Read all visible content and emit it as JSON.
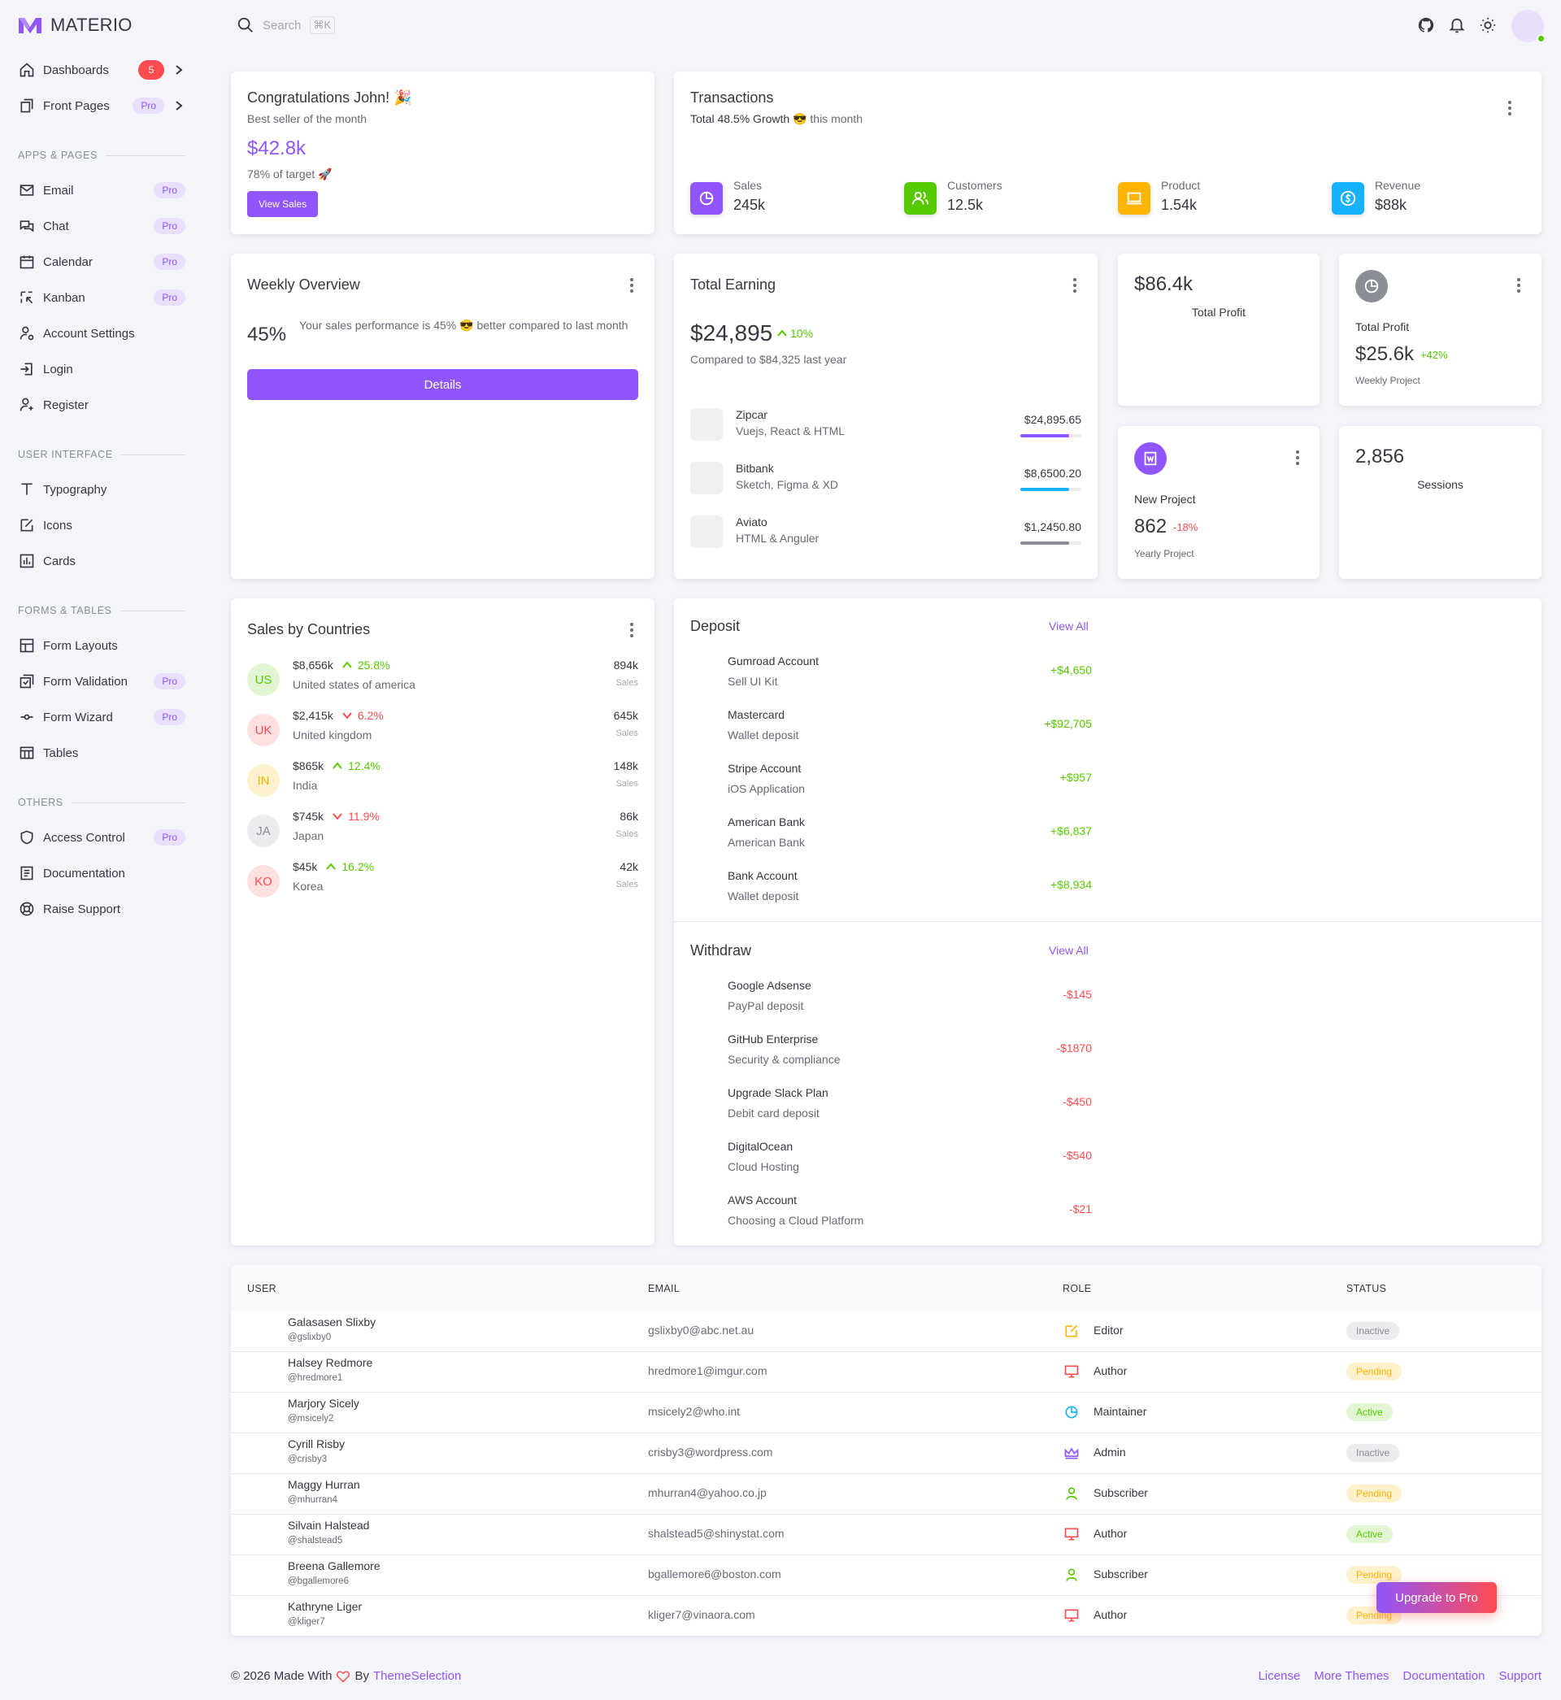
{
  "brand": {
    "name": "MATERIO"
  },
  "search": {
    "placeholder": "Search",
    "shortcut": "⌘K"
  },
  "sidebar": {
    "dashboards": {
      "label": "Dashboards",
      "badge": "5"
    },
    "front_pages": {
      "label": "Front Pages",
      "badge": "Pro"
    },
    "sections": [
      "APPS & PAGES",
      "USER INTERFACE",
      "FORMS & TABLES",
      "OTHERS"
    ],
    "apps": [
      {
        "label": "Email",
        "badge": "Pro"
      },
      {
        "label": "Chat",
        "badge": "Pro"
      },
      {
        "label": "Calendar",
        "badge": "Pro"
      },
      {
        "label": "Kanban",
        "badge": "Pro"
      },
      {
        "label": "Account Settings"
      },
      {
        "label": "Login"
      },
      {
        "label": "Register"
      }
    ],
    "ui": [
      {
        "label": "Typography"
      },
      {
        "label": "Icons"
      },
      {
        "label": "Cards"
      }
    ],
    "forms": [
      {
        "label": "Form Layouts"
      },
      {
        "label": "Form Validation",
        "badge": "Pro"
      },
      {
        "label": "Form Wizard",
        "badge": "Pro"
      },
      {
        "label": "Tables"
      }
    ],
    "others": [
      {
        "label": "Access Control",
        "badge": "Pro"
      },
      {
        "label": "Documentation"
      },
      {
        "label": "Raise Support"
      }
    ]
  },
  "congrats": {
    "title": "Congratulations John! 🎉",
    "subtitle": "Best seller of the month",
    "amount": "$42.8k",
    "target": "78% of target 🚀",
    "button": "View Sales"
  },
  "transactions": {
    "title": "Transactions",
    "subtitle_prefix": "Total 48.5% Growth",
    "subtitle_emoji": "😎",
    "subtitle_suffix": "this month",
    "items": [
      {
        "label": "Sales",
        "value": "245k",
        "color": "#9055fd"
      },
      {
        "label": "Customers",
        "value": "12.5k",
        "color": "#56ca00"
      },
      {
        "label": "Product",
        "value": "1.54k",
        "color": "#ffb400"
      },
      {
        "label": "Revenue",
        "value": "$88k",
        "color": "#16b1ff"
      }
    ]
  },
  "weekly": {
    "title": "Weekly Overview",
    "percent": "45%",
    "text": "Your sales performance is 45% 😎 better compared to last month",
    "button": "Details"
  },
  "earning": {
    "title": "Total Earning",
    "amount": "$24,895",
    "change": "10%",
    "compare": "Compared to $84,325 last year",
    "items": [
      {
        "name": "Zipcar",
        "tech": "Vuejs, React & HTML",
        "amount": "$24,895.65",
        "progress": 0.8,
        "color": "#9055fd"
      },
      {
        "name": "Bitbank",
        "tech": "Sketch, Figma & XD",
        "amount": "$8,6500.20",
        "progress": 0.8,
        "color": "#16b1ff"
      },
      {
        "name": "Aviato",
        "tech": "HTML & Anguler",
        "amount": "$1,2450.80",
        "progress": 0.8,
        "color": "#8a8d93"
      }
    ]
  },
  "stat_profit1": {
    "value": "$86.4k",
    "label": "Total Profit"
  },
  "stat_profit2": {
    "label": "Total Profit",
    "value": "$25.6k",
    "change": "+42%",
    "sub": "Weekly Project"
  },
  "stat_project": {
    "label": "New Project",
    "value": "862",
    "change": "-18%",
    "sub": "Yearly Project"
  },
  "stat_sessions": {
    "value": "2,856",
    "label": "Sessions"
  },
  "countries": {
    "title": "Sales by Countries",
    "items": [
      {
        "code": "US",
        "amount": "$8,656k",
        "change": "25.8%",
        "dir": "up",
        "name": "United states of america",
        "sales": "894k",
        "sales_label": "Sales",
        "bg": "#e2f6d3",
        "fg": "#56ca00"
      },
      {
        "code": "UK",
        "amount": "$2,415k",
        "change": "6.2%",
        "dir": "down",
        "name": "United kingdom",
        "sales": "645k",
        "sales_label": "Sales",
        "bg": "#ffe0e1",
        "fg": "#ff4c51"
      },
      {
        "code": "IN",
        "amount": "$865k",
        "change": "12.4%",
        "dir": "up",
        "name": "India",
        "sales": "148k",
        "sales_label": "Sales",
        "bg": "#fff1cc",
        "fg": "#ffb400"
      },
      {
        "code": "JA",
        "amount": "$745k",
        "change": "11.9%",
        "dir": "down",
        "name": "Japan",
        "sales": "86k",
        "sales_label": "Sales",
        "bg": "#ececee",
        "fg": "#8a8d93"
      },
      {
        "code": "KO",
        "amount": "$45k",
        "change": "16.2%",
        "dir": "up",
        "name": "Korea",
        "sales": "42k",
        "sales_label": "Sales",
        "bg": "#ffe0e1",
        "fg": "#ff4c51"
      }
    ]
  },
  "deposit": {
    "title": "Deposit",
    "view_all": "View All",
    "items": [
      {
        "name": "Gumroad Account",
        "desc": "Sell UI Kit",
        "amount": "+$4,650"
      },
      {
        "name": "Mastercard",
        "desc": "Wallet deposit",
        "amount": "+$92,705"
      },
      {
        "name": "Stripe Account",
        "desc": "iOS Application",
        "amount": "+$957"
      },
      {
        "name": "American Bank",
        "desc": "American Bank",
        "amount": "+$6,837"
      },
      {
        "name": "Bank Account",
        "desc": "Wallet deposit",
        "amount": "+$8,934"
      }
    ]
  },
  "withdraw": {
    "title": "Withdraw",
    "view_all": "View All",
    "items": [
      {
        "name": "Google Adsense",
        "desc": "PayPal deposit",
        "amount": "-$145"
      },
      {
        "name": "GitHub Enterprise",
        "desc": "Security & compliance",
        "amount": "-$1870"
      },
      {
        "name": "Upgrade Slack Plan",
        "desc": "Debit card deposit",
        "amount": "-$450"
      },
      {
        "name": "DigitalOcean",
        "desc": "Cloud Hosting",
        "amount": "-$540"
      },
      {
        "name": "AWS Account",
        "desc": "Choosing a Cloud Platform",
        "amount": "-$21"
      }
    ]
  },
  "table": {
    "headers": [
      "USER",
      "EMAIL",
      "ROLE",
      "STATUS"
    ],
    "rows": [
      {
        "name": "Galasasen Slixby",
        "handle": "@gslixby0",
        "email": "gslixby0@abc.net.au",
        "role": "Editor",
        "role_icon": "edit-icon",
        "role_color": "#ffb400",
        "status": "Inactive"
      },
      {
        "name": "Halsey Redmore",
        "handle": "@hredmore1",
        "email": "hredmore1@imgur.com",
        "role": "Author",
        "role_icon": "monitor-icon",
        "role_color": "#ff4c51",
        "status": "Pending"
      },
      {
        "name": "Marjory Sicely",
        "handle": "@msicely2",
        "email": "msicely2@who.int",
        "role": "Maintainer",
        "role_icon": "pie-icon",
        "role_color": "#16b1ff",
        "status": "Active"
      },
      {
        "name": "Cyrill Risby",
        "handle": "@crisby3",
        "email": "crisby3@wordpress.com",
        "role": "Admin",
        "role_icon": "crown-icon",
        "role_color": "#9055fd",
        "status": "Inactive"
      },
      {
        "name": "Maggy Hurran",
        "handle": "@mhurran4",
        "email": "mhurran4@yahoo.co.jp",
        "role": "Subscriber",
        "role_icon": "user-icon",
        "role_color": "#56ca00",
        "status": "Pending"
      },
      {
        "name": "Silvain Halstead",
        "handle": "@shalstead5",
        "email": "shalstead5@shinystat.com",
        "role": "Author",
        "role_icon": "monitor-icon",
        "role_color": "#ff4c51",
        "status": "Active"
      },
      {
        "name": "Breena Gallemore",
        "handle": "@bgallemore6",
        "email": "bgallemore6@boston.com",
        "role": "Subscriber",
        "role_icon": "user-icon",
        "role_color": "#56ca00",
        "status": "Pending"
      },
      {
        "name": "Kathryne Liger",
        "handle": "@kliger7",
        "email": "kliger7@vinaora.com",
        "role": "Author",
        "role_icon": "monitor-icon",
        "role_color": "#ff4c51",
        "status": "Pending"
      }
    ]
  },
  "upgrade": {
    "label": "Upgrade to Pro"
  },
  "footer": {
    "copyright": "© 2026 Made With",
    "by": "By",
    "company": "ThemeSelection",
    "links": [
      "License",
      "More Themes",
      "Documentation",
      "Support"
    ]
  }
}
